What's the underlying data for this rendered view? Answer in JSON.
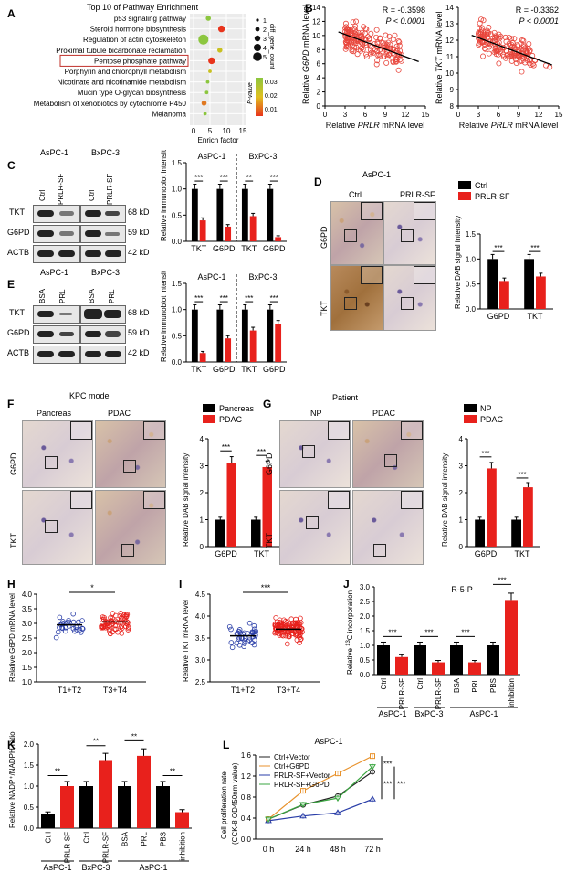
{
  "A": {
    "label": "A",
    "title": "Top 10 of Pathway Enrichment",
    "pathways": [
      "p53 signaling pathway",
      "Steroid hormone biosynthesis",
      "Regulation of actin cytoskeleton",
      "Proximal tubule bicarbonate reclamation",
      "Pentose phosphate pathway",
      "Porphyrin and chlorophyll metabolism",
      "Nicotinate and nicotinamide metabolism",
      "Mucin type O-glycan biosynthesis",
      "Metabolism of xenobiotics by cytochrome P450",
      "Melanoma"
    ],
    "xlabel": "Enrich factor",
    "xticks": [
      "0",
      "5",
      "10",
      "15"
    ],
    "size_legend_title": "diff_gene_count",
    "size_legend_values": [
      "1",
      "2",
      "3",
      "4",
      "5"
    ],
    "color_legend_title": "P-value",
    "color_legend_values": [
      "0.03",
      "0.02",
      "0.01"
    ]
  },
  "B": {
    "label": "B",
    "left": {
      "ylabel_prefix": "Relative ",
      "ylabel_gene": "G6PD",
      "ylabel_suffix": " mRNA level",
      "xlabel_prefix": "Relative ",
      "xlabel_gene": "PRLR",
      "xlabel_suffix": " mRNA level",
      "r": "R = -0.3598",
      "p": "P < 0.0001",
      "yticks": [
        "0",
        "2",
        "4",
        "6",
        "8",
        "10",
        "12",
        "14"
      ],
      "xticks": [
        "0",
        "3",
        "6",
        "9",
        "12",
        "15"
      ]
    },
    "right": {
      "ylabel_prefix": "Relative ",
      "ylabel_gene": "TKT",
      "ylabel_suffix": " mRNA level",
      "xlabel_prefix": "Relative ",
      "xlabel_gene": "PRLR",
      "xlabel_suffix": " mRNA level",
      "r": "R = -0.3362",
      "p": "P < 0.0001",
      "yticks": [
        "8",
        "9",
        "10",
        "11",
        "12",
        "13",
        "14"
      ],
      "xticks": [
        "0",
        "3",
        "6",
        "9",
        "12",
        "15"
      ]
    }
  },
  "C": {
    "label": "C",
    "cell1": "AsPC-1",
    "cell2": "BxPC-3",
    "lanes": [
      "Ctrl",
      "PRLR-SF",
      "Ctrl",
      "PRLR-SF"
    ],
    "rows": [
      "TKT",
      "G6PD",
      "ACTB"
    ],
    "sizes": [
      "68 kD",
      "59 kD",
      "42 kD"
    ],
    "ylabel": "Relative immunoblot intensity",
    "yticks": [
      "0.0",
      "0.5",
      "1.0",
      "1.5"
    ],
    "groups": [
      "AsPC-1",
      "BxPC-3"
    ],
    "cats": [
      "TKT",
      "G6PD",
      "TKT",
      "G6PD"
    ],
    "sig": [
      "***",
      "***",
      "**",
      "***"
    ]
  },
  "D": {
    "label": "D",
    "cell": "AsPC-1",
    "cols": [
      "Ctrl",
      "PRLR-SF"
    ],
    "rows": [
      "G6PD",
      "TKT"
    ],
    "legend": [
      "Ctrl",
      "PRLR-SF"
    ],
    "ylabel": "Relative DAB signal intensity",
    "yticks": [
      "0.0",
      "0.5",
      "1.0",
      "1.5"
    ],
    "cats": [
      "G6PD",
      "TKT"
    ],
    "sig": [
      "***",
      "***"
    ]
  },
  "E": {
    "label": "E",
    "cell1": "AsPC-1",
    "cell2": "BxPC-3",
    "lanes": [
      "BSA",
      "PRL",
      "BSA",
      "PRL"
    ],
    "rows": [
      "TKT",
      "G6PD",
      "ACTB"
    ],
    "sizes": [
      "68 kD",
      "59 kD",
      "42 kD"
    ],
    "ylabel": "Relative immunoblot intensity",
    "yticks": [
      "0.0",
      "0.5",
      "1.0",
      "1.5"
    ],
    "groups": [
      "AsPC-1",
      "BxPC-3"
    ],
    "cats": [
      "TKT",
      "G6PD",
      "TKT",
      "G6PD"
    ],
    "sig": [
      "***",
      "***",
      "***",
      "***"
    ]
  },
  "F": {
    "label": "F",
    "model": "KPC model",
    "cols": [
      "Pancreas",
      "PDAC"
    ],
    "rows": [
      "G6PD",
      "TKT"
    ],
    "legend": [
      "Pancreas",
      "PDAC"
    ],
    "ylabel": "Relative DAB signal intensity",
    "yticks": [
      "0",
      "1",
      "2",
      "3",
      "4"
    ],
    "cats": [
      "G6PD",
      "TKT"
    ],
    "sig": [
      "***",
      "***"
    ]
  },
  "G": {
    "label": "G",
    "model": "Patient",
    "cols": [
      "NP",
      "PDAC"
    ],
    "rows": [
      "G6PD",
      "TKT"
    ],
    "legend": [
      "NP",
      "PDAC"
    ],
    "ylabel": "Relative DAB signal intensity",
    "yticks": [
      "0",
      "1",
      "2",
      "3",
      "4"
    ],
    "cats": [
      "G6PD",
      "TKT"
    ],
    "sig": [
      "***",
      "***"
    ]
  },
  "H": {
    "label": "H",
    "ylabel": "Relative G6PD mRNA  level",
    "yticks": [
      "1.0",
      "1.5",
      "2.0",
      "2.5",
      "3.0",
      "3.5",
      "4.0"
    ],
    "groups": [
      "T1+T2",
      "T3+T4"
    ],
    "sig": "*"
  },
  "I": {
    "label": "I",
    "ylabel": "Relative TKT mRNA  level",
    "yticks": [
      "2.5",
      "3.0",
      "3.5",
      "4.0",
      "4.5"
    ],
    "groups": [
      "T1+T2",
      "T3+T4"
    ],
    "sig": "***"
  },
  "J": {
    "label": "J",
    "title": "R-5-P",
    "ylabel_prefix": "Relative ",
    "ylabel_sup": "13",
    "ylabel_suffix": "C incorporation",
    "yticks": [
      "0.0",
      "0.5",
      "1.0",
      "1.5",
      "2.0",
      "2.5",
      "3.0"
    ],
    "lanes": [
      "Ctrl",
      "PRLR-SF",
      "Ctrl",
      "PRLR-SF",
      "BSA",
      "PRL",
      "PBS",
      "inhibition"
    ],
    "groups": [
      "AsPC-1",
      "BxPC-3",
      "AsPC-1"
    ],
    "sig": [
      "***",
      "***",
      "***",
      "***"
    ]
  },
  "K": {
    "label": "K",
    "ylabel": "Relative NADP⁺/NADPH ratio",
    "yticks": [
      "0.0",
      "0.5",
      "1.0",
      "1.5",
      "2.0"
    ],
    "lanes": [
      "Ctrl",
      "PRLR-SF",
      "Ctrl",
      "PRLR-SF",
      "BSA",
      "PRL",
      "PBS",
      "inhibition"
    ],
    "groups": [
      "AsPC-1",
      "BxPC-3",
      "AsPC-1"
    ],
    "sig": [
      "**",
      "**",
      "**",
      "**"
    ]
  },
  "L": {
    "label": "L",
    "title": "AsPC-1",
    "ylabel1": "Cell proliferation rate",
    "ylabel2": "(CCK-8 OD450nm value)",
    "yticks": [
      "0.0",
      "0.4",
      "0.8",
      "1.2",
      "1.6"
    ],
    "xticks": [
      "0 h",
      "24 h",
      "48 h",
      "72 h"
    ],
    "legend": [
      "Ctrl+Vector",
      "Ctrl+G6PD",
      "PRLR-SF+Vector",
      "PRLR-SF+G6PD"
    ],
    "sig": [
      "***",
      "***",
      "***"
    ]
  },
  "chart_data": [
    {
      "type": "scatter",
      "panel": "A",
      "title": "Top 10 of Pathway Enrichment",
      "xlabel": "Enrich factor",
      "xlim": [
        0,
        15
      ],
      "categories": [
        "p53 signaling pathway",
        "Steroid hormone biosynthesis",
        "Regulation of actin cytoskeleton",
        "Proximal tubule bicarbonate reclamation",
        "Pentose phosphate pathway",
        "Porphyrin and chlorophyll metabolism",
        "Nicotinate and nicotinamide metabolism",
        "Mucin type O-glycan biosynthesis",
        "Metabolism of xenobiotics by cytochrome P450",
        "Melanoma"
      ],
      "x": [
        4.5,
        8.5,
        3.0,
        8.0,
        5.5,
        5.0,
        4.3,
        4.0,
        3.2,
        3.5
      ],
      "gene_count": [
        2,
        3,
        5,
        2,
        3,
        1,
        1,
        1,
        2,
        1
      ],
      "pvalue": [
        0.025,
        0.002,
        0.03,
        0.02,
        0.005,
        0.02,
        0.03,
        0.03,
        0.01,
        0.03
      ]
    },
    {
      "type": "bar",
      "panel": "C",
      "categories": [
        "TKT",
        "G6PD",
        "TKT",
        "G6PD"
      ],
      "ylim": [
        0,
        1.5
      ],
      "series": [
        {
          "name": "Ctrl",
          "values": [
            1.0,
            1.0,
            1.0,
            1.0
          ]
        },
        {
          "name": "PRLR-SF",
          "values": [
            0.4,
            0.28,
            0.48,
            0.08
          ]
        }
      ]
    },
    {
      "type": "bar",
      "panel": "D",
      "categories": [
        "G6PD",
        "TKT"
      ],
      "ylim": [
        0,
        1.5
      ],
      "series": [
        {
          "name": "Ctrl",
          "values": [
            1.0,
            1.0
          ]
        },
        {
          "name": "PRLR-SF",
          "values": [
            0.56,
            0.65
          ]
        }
      ]
    },
    {
      "type": "bar",
      "panel": "E",
      "categories": [
        "TKT",
        "G6PD",
        "TKT",
        "G6PD"
      ],
      "ylim": [
        0,
        1.5
      ],
      "series": [
        {
          "name": "BSA",
          "values": [
            1.0,
            1.0,
            1.0,
            1.0
          ]
        },
        {
          "name": "PRL",
          "values": [
            0.17,
            0.45,
            0.6,
            0.72
          ]
        }
      ]
    },
    {
      "type": "bar",
      "panel": "F",
      "categories": [
        "G6PD",
        "TKT"
      ],
      "ylim": [
        0,
        4
      ],
      "series": [
        {
          "name": "Pancreas",
          "values": [
            1.0,
            1.0
          ]
        },
        {
          "name": "PDAC",
          "values": [
            3.1,
            2.95
          ]
        }
      ]
    },
    {
      "type": "bar",
      "panel": "G",
      "categories": [
        "G6PD",
        "TKT"
      ],
      "ylim": [
        0,
        4
      ],
      "series": [
        {
          "name": "NP",
          "values": [
            1.0,
            1.0
          ]
        },
        {
          "name": "PDAC",
          "values": [
            2.9,
            2.2
          ]
        }
      ]
    },
    {
      "type": "bar",
      "panel": "J",
      "title": "R-5-P",
      "ylim": [
        0,
        3
      ],
      "categories": [
        "Ctrl",
        "PRLR-SF",
        "Ctrl",
        "PRLR-SF",
        "BSA",
        "PRL",
        "PBS",
        "inhibition"
      ],
      "values": [
        1.0,
        0.6,
        1.0,
        0.42,
        1.0,
        0.42,
        1.0,
        2.55
      ]
    },
    {
      "type": "bar",
      "panel": "K",
      "ylim": [
        0,
        2
      ],
      "categories": [
        "Ctrl",
        "PRLR-SF",
        "Ctrl",
        "PRLR-SF",
        "BSA",
        "PRL",
        "PBS",
        "inhibition"
      ],
      "values": [
        0.33,
        1.0,
        1.0,
        1.62,
        1.0,
        1.72,
        1.0,
        0.38
      ]
    },
    {
      "type": "line",
      "panel": "L",
      "x": [
        "0 h",
        "24 h",
        "48 h",
        "72 h"
      ],
      "ylim": [
        0,
        1.6
      ],
      "series": [
        {
          "name": "Ctrl+Vector",
          "values": [
            0.38,
            0.65,
            0.82,
            1.28
          ]
        },
        {
          "name": "Ctrl+G6PD",
          "values": [
            0.38,
            0.92,
            1.25,
            1.58
          ]
        },
        {
          "name": "PRLR-SF+Vector",
          "values": [
            0.35,
            0.44,
            0.5,
            0.76
          ]
        },
        {
          "name": "PRLR-SF+G6PD",
          "values": [
            0.38,
            0.66,
            0.78,
            1.38
          ]
        }
      ]
    }
  ]
}
